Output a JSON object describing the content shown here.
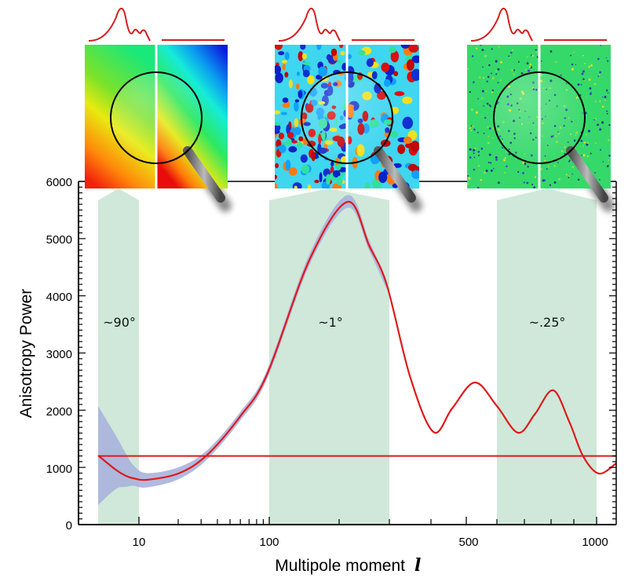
{
  "chart_data": {
    "type": "line",
    "xlabel": "Multipole moment",
    "xlabel_symbol": "l",
    "ylabel": "Anisotropy Power",
    "xlim": [
      2,
      1090
    ],
    "ylim": [
      0,
      6000
    ],
    "x_scale": "log below 100, compressed above 100",
    "grid": false,
    "legend": "none",
    "x_ticks": [
      {
        "value": 10,
        "label": "10"
      },
      {
        "value": 100,
        "label": "100"
      },
      {
        "value": 500,
        "label": "500"
      },
      {
        "value": 1000,
        "label": "1000"
      }
    ],
    "x_minor_ticks": [
      20,
      30,
      40,
      50,
      60,
      70,
      80,
      90,
      200,
      300,
      400,
      600,
      700,
      800,
      900
    ],
    "y_ticks": [
      {
        "value": 0,
        "label": "0"
      },
      {
        "value": 1000,
        "label": "1000"
      },
      {
        "value": 2000,
        "label": "2000"
      },
      {
        "value": 3000,
        "label": "3000"
      },
      {
        "value": 4000,
        "label": "4000"
      },
      {
        "value": 5000,
        "label": "5000"
      },
      {
        "value": 6000,
        "label": "6000"
      }
    ],
    "series": [
      {
        "kind": "curve",
        "color": "#e0191b",
        "x": [
          2,
          4,
          6,
          8,
          11.5,
          20,
          33,
          60,
          96,
          158,
          217,
          260,
          295,
          350,
          407,
          460,
          528,
          600,
          677,
          740,
          809,
          880,
          941,
          1010,
          1086
        ],
        "y": [
          1208,
          960,
          851,
          810,
          783,
          892,
          1208,
          1895,
          2622,
          4641,
          5643,
          4874,
          4188,
          2581,
          1620,
          2032,
          2485,
          2073,
          1606,
          1936,
          2348,
          1798,
          1194,
          892,
          1071
        ]
      },
      {
        "kind": "flat-line",
        "color": "#e0191b",
        "y": 1200
      }
    ],
    "uncertainty_band": {
      "color": "#a9b3dc",
      "x": [
        2,
        4,
        6,
        8,
        11.5,
        20,
        33,
        60,
        96,
        158,
        217,
        260,
        295
      ],
      "lower": [
        343,
        620,
        660,
        680,
        650,
        790,
        1130,
        1820,
        2540,
        4550,
        5540,
        4790,
        4110
      ],
      "upper": [
        2073,
        1560,
        1240,
        1040,
        900,
        1000,
        1290,
        1970,
        2700,
        4740,
        5760,
        4960,
        4270
      ]
    },
    "highlight_regions": [
      {
        "x_range": [
          2,
          10
        ],
        "label": "~90°",
        "color": "#cfe8d9"
      },
      {
        "x_range": [
          100,
          300
        ],
        "label": "~1°",
        "color": "#cfe8d9"
      },
      {
        "x_range": [
          600,
          1000
        ],
        "label": "~.25°",
        "color": "#cfe8d9"
      }
    ],
    "insets": [
      {
        "scale": "large",
        "style": "smooth"
      },
      {
        "scale": "medium",
        "style": "blobs"
      },
      {
        "scale": "small",
        "style": "speckle"
      }
    ]
  }
}
